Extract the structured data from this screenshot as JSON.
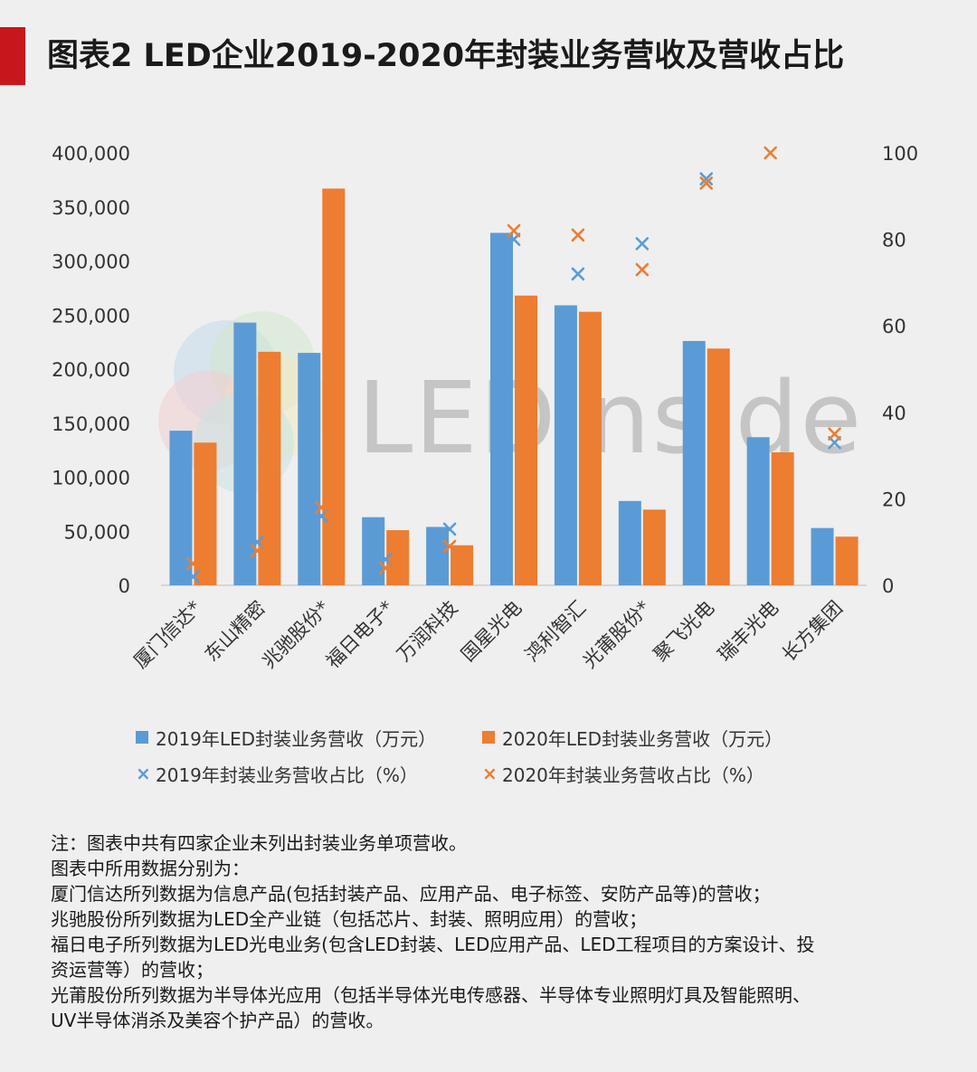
{
  "title": "图表2  LED企业2019-2020年封装业务营收及营收占比",
  "watermark": "LEDinside",
  "chart_data": {
    "type": "bar",
    "categories": [
      "厦门信达*",
      "东山精密",
      "兆驰股份*",
      "福日电子*",
      "万润科技",
      "国星光电",
      "鸿利智汇",
      "光莆股份*",
      "聚飞光电",
      "瑞丰光电",
      "长方集团"
    ],
    "series": [
      {
        "name": "2019年LED封装业务营收（万元）",
        "type": "bar",
        "axis": "left",
        "color": "#5b9bd5",
        "values": [
          143000,
          243000,
          215000,
          63000,
          54000,
          326000,
          259000,
          78000,
          226000,
          137000,
          53000
        ]
      },
      {
        "name": "2020年LED封装业务营收（万元）",
        "type": "bar",
        "axis": "left",
        "color": "#ed7d31",
        "values": [
          132000,
          216000,
          367000,
          51000,
          37000,
          268000,
          253000,
          70000,
          219000,
          123000,
          45000
        ]
      },
      {
        "name": "2019年封装业务营收占比（%）",
        "type": "scatter",
        "axis": "right",
        "color": "#5b9bd5",
        "values": [
          2,
          10,
          16,
          6,
          13,
          80,
          72,
          79,
          94,
          null,
          33
        ]
      },
      {
        "name": "2020年封装业务营收占比（%）",
        "type": "scatter",
        "axis": "right",
        "color": "#ed7d31",
        "values": [
          5,
          8,
          18,
          4,
          9,
          82,
          81,
          73,
          93,
          100,
          35
        ]
      }
    ],
    "left_axis": {
      "min": 0,
      "max": 400000,
      "ticks": [
        "0",
        "50,000",
        "100,000",
        "150,000",
        "200,000",
        "250,000",
        "300,000",
        "350,000",
        "400,000"
      ]
    },
    "right_axis": {
      "min": 0,
      "max": 100,
      "ticks": [
        "0",
        "20",
        "40",
        "60",
        "80",
        "100"
      ]
    },
    "grid": false,
    "legend_position": "bottom"
  },
  "legend": {
    "bar2019": "2019年LED封装业务营收（万元）",
    "bar2020": "2020年LED封装业务营收（万元）",
    "pct2019": "2019年封装业务营收占比（%）",
    "pct2020": "2020年封装业务营收占比（%）",
    "x_glyph": "×"
  },
  "notes": [
    "注：图表中共有四家企业未列出封装业务单项营收。",
    "图表中所用数据分别为：",
    "厦门信达所列数据为信息产品(包括封装产品、应用产品、电子标签、安防产品等)的营收；",
    "兆驰股份所列数据为LED全产业链（包括芯片、封装、照明应用）的营收；",
    "福日电子所列数据为LED光电业务(包含LED封装、LED应用产品、LED工程项目的方案设计、投",
    "资运营等）的营收；",
    "光莆股份所列数据为半导体光应用（包括半导体光电传感器、半导体专业照明灯具及智能照明、",
    "UV半导体消杀及美容个护产品）的营收。"
  ],
  "colors": {
    "accent": "#c8161d",
    "blue": "#5b9bd5",
    "orange": "#ed7d31"
  }
}
